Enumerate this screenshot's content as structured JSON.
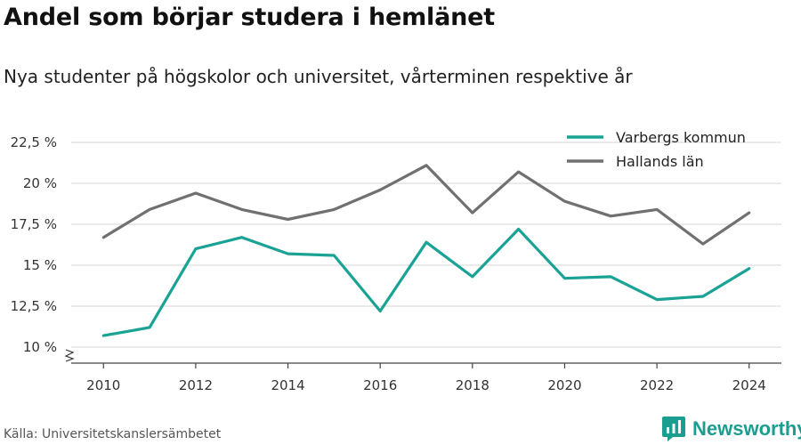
{
  "header": {
    "title": "Andel som börjar studera i hemlänet",
    "subtitle": "Nya studenter på högskolor och universitet, vårterminen respektive år"
  },
  "footer": {
    "source": "Källa: Universitetskanslersämbetet",
    "brand": "Newsworthy"
  },
  "chart_data": {
    "type": "line",
    "title": "Andel som börjar studera i hemlänet",
    "subtitle": "Nya studenter på högskolor och universitet, vårterminen respektive år",
    "xlabel": "",
    "ylabel": "",
    "x": [
      2010,
      2011,
      2012,
      2013,
      2014,
      2015,
      2016,
      2017,
      2018,
      2019,
      2020,
      2021,
      2022,
      2023,
      2024
    ],
    "x_ticks": [
      "2010",
      "2012",
      "2014",
      "2016",
      "2018",
      "2020",
      "2022",
      "2024"
    ],
    "y_ticks": [
      "10 %",
      "12,5 %",
      "15 %",
      "17,5 %",
      "20 %",
      "22,5 %"
    ],
    "ylim": [
      10,
      22.5
    ],
    "grid": true,
    "legend_position": "top-right",
    "series": [
      {
        "name": "Varbergs kommun",
        "color": "#1aa394",
        "values": [
          10.7,
          11.2,
          16.0,
          16.7,
          15.7,
          15.6,
          12.2,
          16.4,
          14.3,
          17.2,
          14.2,
          14.3,
          12.9,
          13.1,
          14.8
        ]
      },
      {
        "name": "Hallands län",
        "color": "#707070",
        "values": [
          16.7,
          18.4,
          19.4,
          18.4,
          17.8,
          18.4,
          19.6,
          21.1,
          18.2,
          20.7,
          18.9,
          18.0,
          18.4,
          16.3,
          18.2
        ]
      }
    ]
  }
}
